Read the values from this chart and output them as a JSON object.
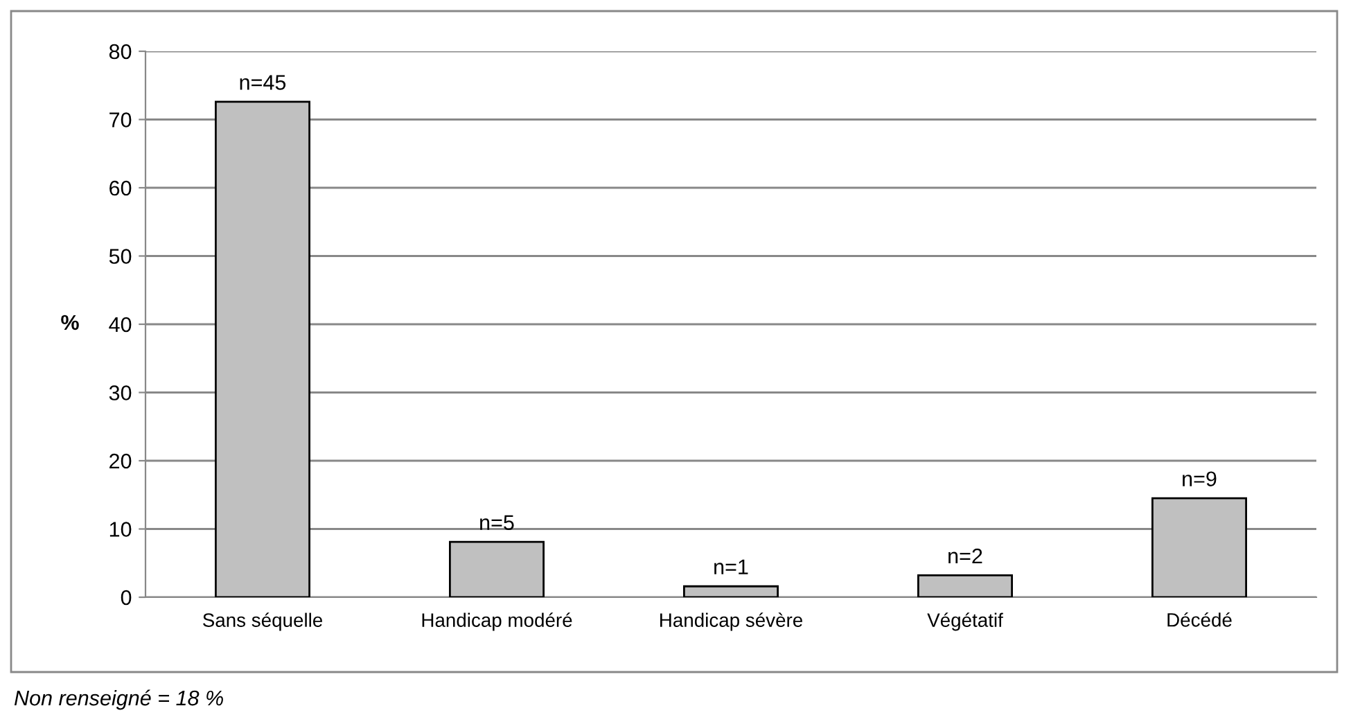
{
  "chart_data": {
    "type": "bar",
    "ylabel": "%",
    "categories": [
      "Sans séquelle",
      "Handicap modéré",
      "Handicap sévère",
      "Végétatif",
      "Décédé"
    ],
    "values": [
      72.6,
      8.1,
      1.6,
      3.2,
      14.5
    ],
    "color": "#c0c0c0",
    "ylim": [
      0,
      80
    ],
    "yticks": [
      0,
      10,
      20,
      30,
      40,
      50,
      60,
      70,
      80
    ],
    "grid": "y",
    "annotations": [
      {
        "text": "n=45",
        "x": "Sans séquelle",
        "y": 72.6
      },
      {
        "text": "n=5",
        "x": "Handicap modéré",
        "y": 8.1
      },
      {
        "text": "n=1",
        "x": "Handicap sévère",
        "y": 1.6
      },
      {
        "text": "n=2",
        "x": "Végétatif",
        "y": 3.2
      },
      {
        "text": "n=9",
        "x": "Décédé",
        "y": 14.5
      },
      "Non renseigné = 18 %"
    ]
  }
}
